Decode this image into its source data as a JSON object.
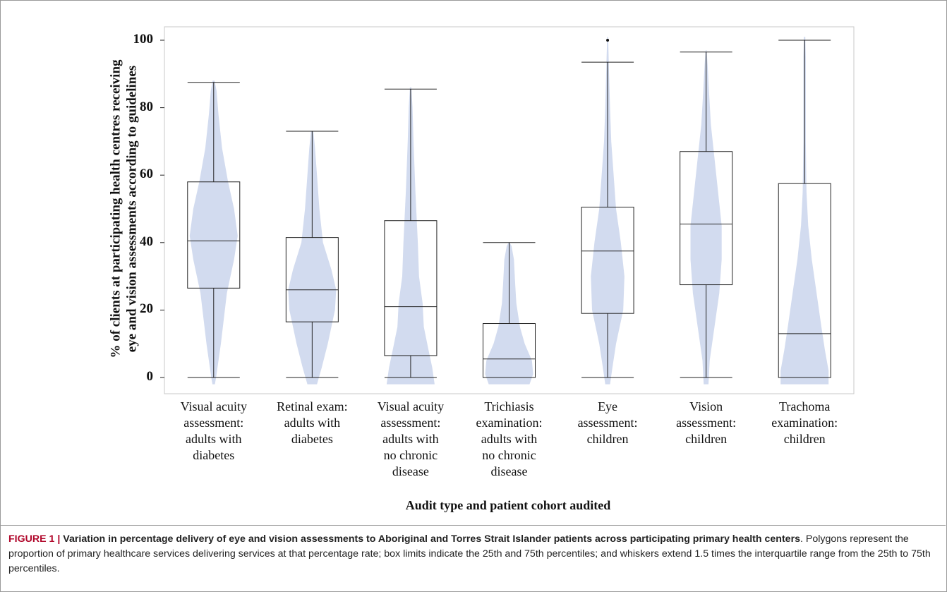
{
  "chart_data": {
    "type": "box-violin",
    "ylabel_line1": "% of clients at participating health centres receiving",
    "ylabel_line2": "eye and vision assessments according to guidelines",
    "xlabel": "Audit type and patient cohort audited",
    "ylim": [
      0,
      100
    ],
    "yticks": [
      "0",
      "20",
      "40",
      "60",
      "80",
      "100"
    ],
    "categories": [
      [
        "Visual acuity",
        "assessment:",
        "adults with",
        "diabetes"
      ],
      [
        "Retinal exam:",
        "adults with",
        "diabetes"
      ],
      [
        "Visual acuity",
        "assessment:",
        "adults with",
        "no chronic",
        "disease"
      ],
      [
        "Trichiasis",
        "examination:",
        "adults with",
        "no chronic",
        "disease"
      ],
      [
        "Eye",
        "assessment:",
        "children"
      ],
      [
        "Vision",
        "assessment:",
        "children"
      ],
      [
        "Trachoma",
        "examination:",
        "children"
      ]
    ],
    "boxes": [
      {
        "whisker_low": 0,
        "q1": 26.5,
        "median": 40.5,
        "q3": 58,
        "whisker_high": 87.5
      },
      {
        "whisker_low": 0,
        "q1": 16.5,
        "median": 26,
        "q3": 41.5,
        "whisker_high": 73
      },
      {
        "whisker_low": 0,
        "q1": 6.5,
        "median": 21,
        "q3": 46.5,
        "whisker_high": 85.5
      },
      {
        "whisker_low": 0,
        "q1": 0,
        "median": 5.5,
        "q3": 16,
        "whisker_high": 40
      },
      {
        "whisker_low": 0,
        "q1": 19,
        "median": 37.5,
        "q3": 50.5,
        "whisker_high": 93.5
      },
      {
        "whisker_low": 0,
        "q1": 27.5,
        "median": 45.5,
        "q3": 67,
        "whisker_high": 96.5
      },
      {
        "whisker_low": 0,
        "q1": 0,
        "median": 13,
        "q3": 57.5,
        "whisker_high": 100
      }
    ],
    "outliers": [
      {
        "category_index": 4,
        "value": 100
      }
    ],
    "violins": [
      {
        "profile": [
          [
            -2,
            0.05
          ],
          [
            0,
            0.1
          ],
          [
            10,
            0.3
          ],
          [
            25,
            0.55
          ],
          [
            35,
            0.85
          ],
          [
            42,
            1.0
          ],
          [
            50,
            0.85
          ],
          [
            58,
            0.6
          ],
          [
            68,
            0.35
          ],
          [
            78,
            0.2
          ],
          [
            85,
            0.12
          ],
          [
            88,
            0.04
          ]
        ]
      },
      {
        "profile": [
          [
            -2,
            0.2
          ],
          [
            3,
            0.4
          ],
          [
            10,
            0.65
          ],
          [
            20,
            0.95
          ],
          [
            26,
            1.0
          ],
          [
            32,
            0.8
          ],
          [
            40,
            0.45
          ],
          [
            50,
            0.3
          ],
          [
            60,
            0.2
          ],
          [
            68,
            0.12
          ],
          [
            73,
            0.05
          ]
        ]
      },
      {
        "profile": [
          [
            -2,
            1.0
          ],
          [
            3,
            0.9
          ],
          [
            8,
            0.75
          ],
          [
            15,
            0.55
          ],
          [
            22,
            0.5
          ],
          [
            30,
            0.35
          ],
          [
            40,
            0.3
          ],
          [
            55,
            0.2
          ],
          [
            70,
            0.12
          ],
          [
            80,
            0.08
          ],
          [
            86,
            0.03
          ]
        ]
      },
      {
        "profile": [
          [
            -2,
            0.85
          ],
          [
            1,
            1.0
          ],
          [
            5,
            0.95
          ],
          [
            10,
            0.65
          ],
          [
            15,
            0.45
          ],
          [
            22,
            0.3
          ],
          [
            28,
            0.25
          ],
          [
            35,
            0.2
          ],
          [
            39,
            0.1
          ],
          [
            40,
            0.02
          ]
        ]
      },
      {
        "profile": [
          [
            -2,
            0.1
          ],
          [
            3,
            0.2
          ],
          [
            10,
            0.35
          ],
          [
            20,
            0.65
          ],
          [
            30,
            0.7
          ],
          [
            40,
            0.55
          ],
          [
            50,
            0.35
          ],
          [
            60,
            0.25
          ],
          [
            70,
            0.15
          ],
          [
            80,
            0.1
          ],
          [
            90,
            0.06
          ],
          [
            101,
            0.02
          ]
        ]
      },
      {
        "profile": [
          [
            -2,
            0.1
          ],
          [
            5,
            0.15
          ],
          [
            15,
            0.35
          ],
          [
            25,
            0.55
          ],
          [
            35,
            0.65
          ],
          [
            45,
            0.65
          ],
          [
            55,
            0.5
          ],
          [
            65,
            0.35
          ],
          [
            75,
            0.2
          ],
          [
            85,
            0.12
          ],
          [
            93,
            0.06
          ],
          [
            97,
            0.02
          ]
        ]
      },
      {
        "profile": [
          [
            -2,
            1.0
          ],
          [
            2,
            1.0
          ],
          [
            8,
            0.85
          ],
          [
            15,
            0.7
          ],
          [
            25,
            0.5
          ],
          [
            35,
            0.3
          ],
          [
            45,
            0.15
          ],
          [
            55,
            0.08
          ],
          [
            70,
            0.05
          ],
          [
            85,
            0.05
          ],
          [
            95,
            0.05
          ],
          [
            101,
            0.03
          ]
        ]
      }
    ]
  },
  "caption": {
    "label": "FIGURE 1",
    "separator": " | ",
    "title": "Variation in percentage delivery of eye and vision assessments to Aboriginal and Torres Strait Islander patients across participating primary health centers",
    "body": ". Polygons represent the proportion of primary healthcare services delivering services at that percentage rate; box limits indicate the 25th and 75th percentiles; and whiskers extend 1.5 times the interquartile range from the 25th to 75th percentiles."
  },
  "colors": {
    "violin_fill": "#d2dbef",
    "box_stroke": "#222222",
    "plot_border": "#c8c8c8",
    "caption_label": "#b0062a"
  }
}
